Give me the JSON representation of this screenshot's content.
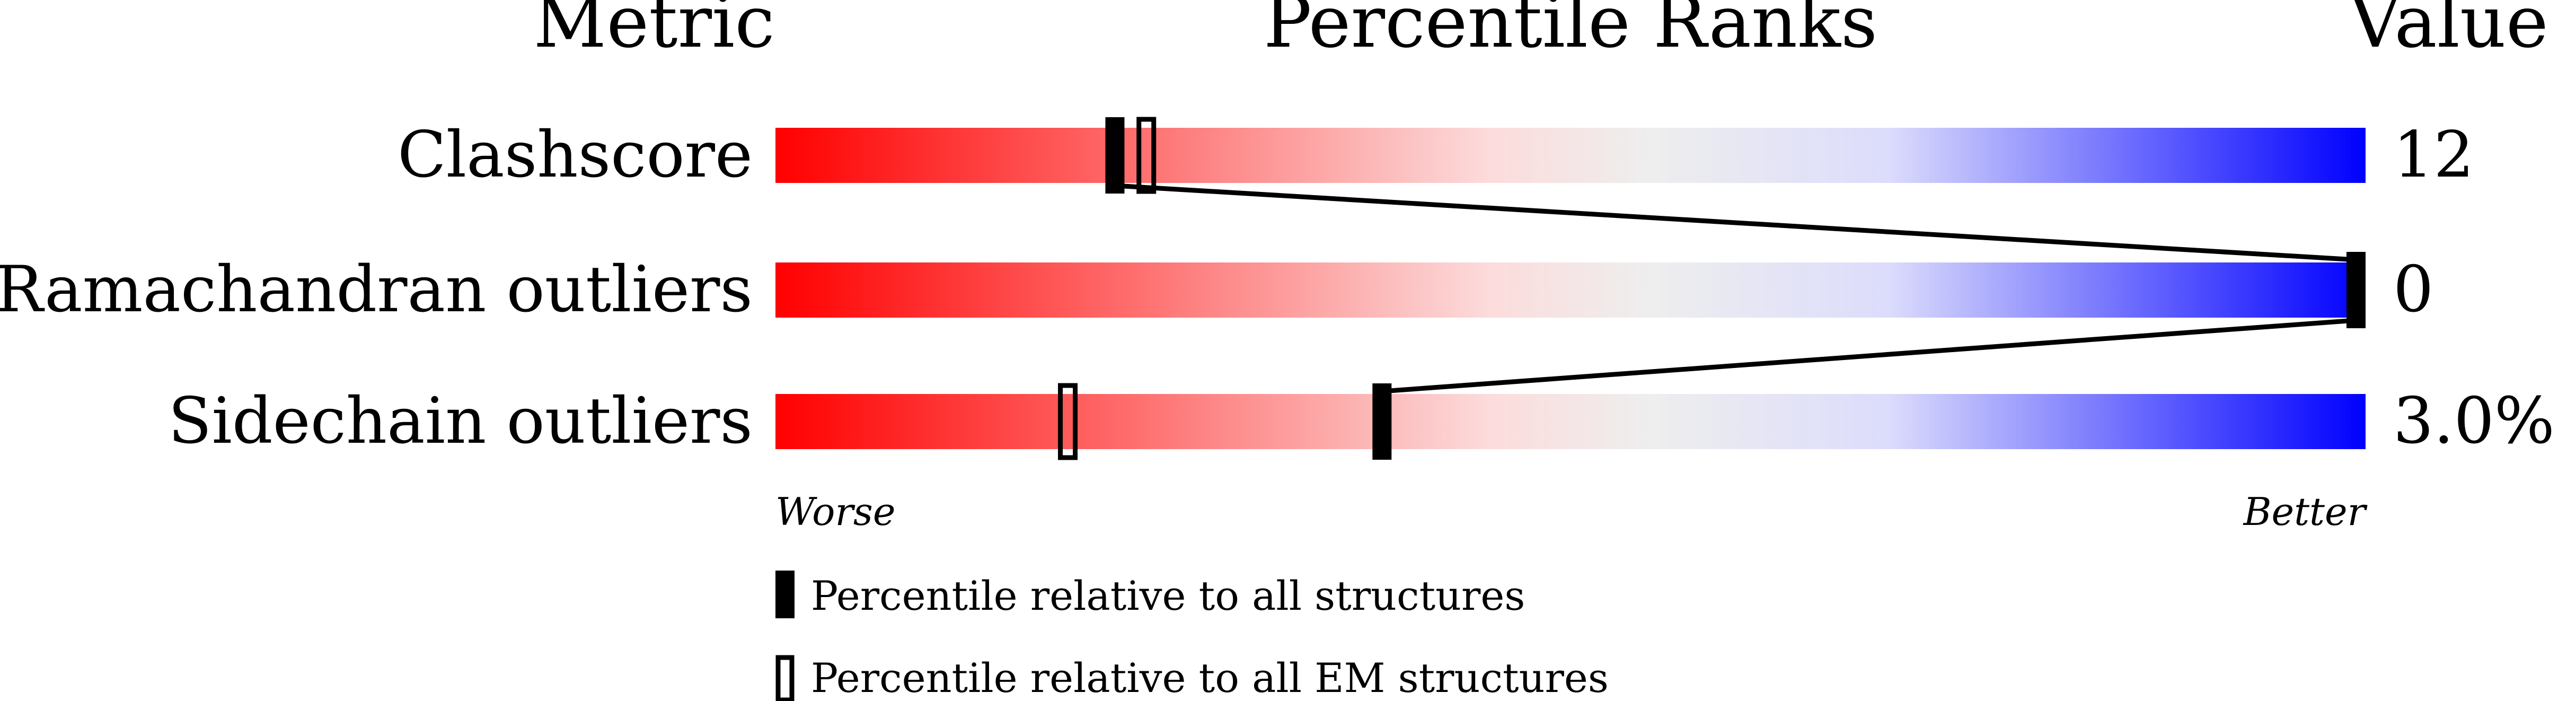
{
  "chart_data": {
    "type": "bar",
    "headers": {
      "metric": "Metric",
      "ranks": "Percentile Ranks",
      "value": "Value"
    },
    "xlim": [
      0,
      100
    ],
    "gradient_colors": [
      "#ff0000",
      "#fcdcdc",
      "#eeeeee",
      "#dcdcfc",
      "#0000ff"
    ],
    "rows": [
      {
        "metric": "Clashscore",
        "value": "12",
        "percentile_all": 21,
        "percentile_em": 23
      },
      {
        "metric": "Ramachandran outliers",
        "value": "0",
        "percentile_all": 100,
        "percentile_em": 100
      },
      {
        "metric": "Sidechain outliers",
        "value": "3.0%",
        "percentile_all": 38,
        "percentile_em": 18
      }
    ],
    "axis_left_label": "Worse",
    "axis_right_label": "Better",
    "legend": [
      {
        "marker": "filled",
        "label": "Percentile relative to all structures"
      },
      {
        "marker": "open",
        "label": "Percentile relative to all EM structures"
      }
    ]
  }
}
